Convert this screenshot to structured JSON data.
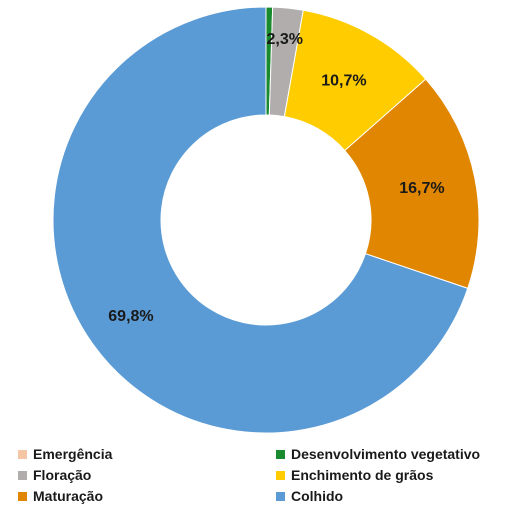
{
  "chart_data": {
    "type": "pie",
    "variant": "donut",
    "title": "",
    "categories": [
      "Emergência",
      "Desenvolvimento vegetativo",
      "Floração",
      "Enchimento de grãos",
      "Maturação",
      "Colhido"
    ],
    "values": [
      0.0,
      0.5,
      2.3,
      10.7,
      16.7,
      69.8
    ],
    "data_labels": [
      "",
      "",
      "2,3%",
      "10,7%",
      "16,7%",
      "69,8%"
    ],
    "colors": [
      "#f5c6a5",
      "#1a8a2e",
      "#b0adac",
      "#ffcc00",
      "#e08600",
      "#5b9bd5"
    ],
    "legend_position": "bottom"
  }
}
